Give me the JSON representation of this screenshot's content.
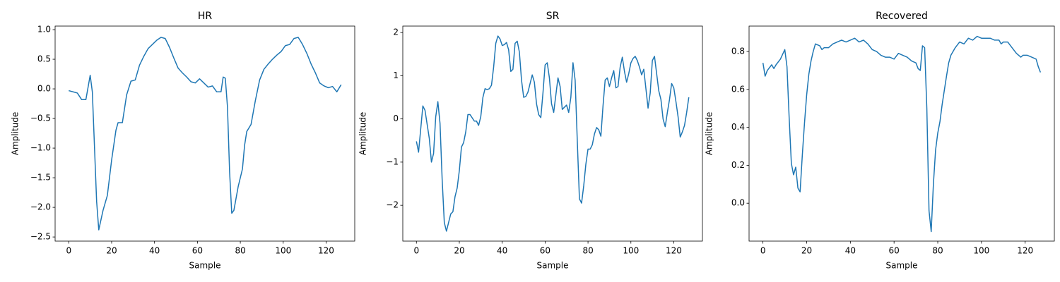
{
  "chart_data": [
    {
      "type": "line",
      "title": "HR",
      "x_label": "Sample",
      "y_label": "Amplitude",
      "color": "#1f77b4",
      "x": [
        0,
        2,
        4,
        6,
        8,
        10,
        11,
        13,
        14,
        16,
        18,
        20,
        22,
        23,
        25,
        27,
        29,
        31,
        33,
        35,
        37,
        39,
        41,
        43,
        45,
        47,
        49,
        51,
        53,
        55,
        57,
        59,
        61,
        63,
        65,
        67,
        69,
        71,
        72,
        73,
        74,
        75,
        76,
        77,
        79,
        81,
        82,
        83,
        85,
        87,
        89,
        91,
        93,
        95,
        97,
        99,
        101,
        103,
        105,
        107,
        109,
        111,
        113,
        115,
        117,
        119,
        121,
        123,
        125,
        127
      ],
      "values": [
        -0.03,
        -0.05,
        -0.07,
        -0.18,
        -0.18,
        0.23,
        -0.05,
        -1.9,
        -2.38,
        -2.05,
        -1.8,
        -1.2,
        -0.7,
        -0.57,
        -0.57,
        -0.1,
        0.13,
        0.15,
        0.4,
        0.55,
        0.68,
        0.75,
        0.82,
        0.87,
        0.85,
        0.7,
        0.52,
        0.35,
        0.27,
        0.2,
        0.12,
        0.1,
        0.17,
        0.1,
        0.03,
        0.05,
        -0.05,
        -0.05,
        0.2,
        0.18,
        -0.3,
        -1.4,
        -2.1,
        -2.05,
        -1.65,
        -1.35,
        -0.95,
        -0.72,
        -0.6,
        -0.2,
        0.15,
        0.33,
        0.42,
        0.5,
        0.57,
        0.63,
        0.73,
        0.75,
        0.85,
        0.87,
        0.75,
        0.6,
        0.42,
        0.27,
        0.1,
        0.05,
        0.02,
        0.04,
        -0.05,
        0.07
      ],
      "xlim": [
        -6.35,
        133.35
      ],
      "xticks": [
        0,
        20,
        40,
        60,
        80,
        100,
        120
      ],
      "ylim": [
        -2.57,
        1.06
      ],
      "yticks": [
        {
          "value": -2.5,
          "label": "−2.5"
        },
        {
          "value": -2.0,
          "label": "−2.0"
        },
        {
          "value": -1.5,
          "label": "−1.5"
        },
        {
          "value": -1.0,
          "label": "−1.0"
        },
        {
          "value": -0.5,
          "label": "−0.5"
        },
        {
          "value": 0,
          "label": "0.0"
        },
        0.5,
        {
          "value": 1,
          "label": "1.0"
        }
      ]
    },
    {
      "type": "line",
      "title": "SR",
      "x_label": "Sample",
      "y_label": "Amplitude",
      "color": "#1f77b4",
      "x": [
        0,
        1,
        3,
        4,
        6,
        7,
        8,
        9,
        10,
        11,
        12,
        13,
        14,
        16,
        17,
        18,
        19,
        20,
        21,
        22,
        23,
        24,
        25,
        27,
        28,
        29,
        30,
        31,
        32,
        33,
        34,
        35,
        36,
        37,
        38,
        39,
        40,
        41,
        42,
        43,
        44,
        45,
        46,
        47,
        48,
        49,
        50,
        51,
        52,
        54,
        55,
        56,
        57,
        58,
        59,
        60,
        61,
        62,
        63,
        64,
        66,
        67,
        68,
        70,
        71,
        72,
        73,
        74,
        75,
        76,
        77,
        78,
        79,
        80,
        81,
        82,
        83,
        84,
        85,
        86,
        87,
        88,
        89,
        90,
        91,
        92,
        93,
        94,
        95,
        96,
        97,
        98,
        99,
        100,
        101,
        102,
        103,
        104,
        105,
        106,
        107,
        108,
        109,
        110,
        111,
        112,
        113,
        114,
        115,
        116,
        117,
        118,
        119,
        120,
        121,
        122,
        123,
        124,
        125,
        126,
        127
      ],
      "values": [
        -0.52,
        -0.77,
        0.3,
        0.2,
        -0.45,
        -1.0,
        -0.8,
        0.05,
        0.4,
        -0.1,
        -1.4,
        -2.4,
        -2.6,
        -2.2,
        -2.15,
        -1.8,
        -1.6,
        -1.2,
        -0.65,
        -0.55,
        -0.3,
        0.1,
        0.1,
        -0.05,
        -0.05,
        -0.15,
        0.05,
        0.5,
        0.7,
        0.68,
        0.7,
        0.78,
        1.2,
        1.75,
        1.92,
        1.85,
        1.7,
        1.72,
        1.77,
        1.6,
        1.1,
        1.15,
        1.75,
        1.8,
        1.55,
        0.9,
        0.5,
        0.52,
        0.62,
        1.02,
        0.85,
        0.35,
        0.1,
        0.03,
        0.6,
        1.25,
        1.3,
        0.95,
        0.35,
        0.15,
        0.95,
        0.75,
        0.22,
        0.32,
        0.15,
        0.5,
        1.3,
        0.9,
        -0.5,
        -1.85,
        -1.95,
        -1.55,
        -1.05,
        -0.7,
        -0.7,
        -0.6,
        -0.35,
        -0.2,
        -0.25,
        -0.4,
        0.3,
        0.9,
        0.95,
        0.75,
        0.95,
        1.12,
        0.72,
        0.75,
        1.2,
        1.43,
        1.1,
        0.85,
        1.05,
        1.3,
        1.4,
        1.45,
        1.35,
        1.2,
        1.02,
        1.15,
        0.7,
        0.25,
        0.6,
        1.35,
        1.45,
        1.05,
        0.65,
        0.45,
        0.0,
        -0.18,
        0.15,
        0.45,
        0.82,
        0.72,
        0.4,
        0.05,
        -0.42,
        -0.3,
        -0.15,
        0.15,
        0.5
      ],
      "xlim": [
        -6.35,
        133.35
      ],
      "xticks": [
        0,
        20,
        40,
        60,
        80,
        100,
        120
      ],
      "ylim": [
        -2.83,
        2.15
      ],
      "yticks": [
        {
          "value": -2,
          "label": "−2"
        },
        {
          "value": -1,
          "label": "−1"
        },
        0,
        1,
        2
      ]
    },
    {
      "type": "line",
      "title": "Recovered",
      "x_label": "Sample",
      "y_label": "Amplitude",
      "color": "#1f77b4",
      "x": [
        0,
        1,
        2,
        4,
        5,
        6,
        8,
        10,
        11,
        12,
        13,
        14,
        15,
        16,
        17,
        18,
        19,
        20,
        21,
        22,
        23,
        24,
        26,
        27,
        28,
        30,
        32,
        34,
        36,
        38,
        40,
        42,
        44,
        46,
        48,
        50,
        52,
        54,
        56,
        58,
        60,
        62,
        64,
        66,
        68,
        70,
        71,
        72,
        73,
        74,
        75,
        76,
        77,
        78,
        79,
        80,
        81,
        82,
        84,
        85,
        86,
        88,
        90,
        92,
        94,
        96,
        98,
        100,
        102,
        104,
        106,
        108,
        109,
        110,
        112,
        114,
        116,
        118,
        119,
        121,
        123,
        125,
        126,
        127
      ],
      "values": [
        0.74,
        0.67,
        0.7,
        0.73,
        0.71,
        0.73,
        0.76,
        0.81,
        0.72,
        0.45,
        0.21,
        0.15,
        0.19,
        0.08,
        0.06,
        0.25,
        0.42,
        0.57,
        0.68,
        0.75,
        0.8,
        0.84,
        0.83,
        0.81,
        0.82,
        0.82,
        0.84,
        0.85,
        0.86,
        0.85,
        0.86,
        0.87,
        0.85,
        0.86,
        0.84,
        0.81,
        0.8,
        0.78,
        0.77,
        0.77,
        0.76,
        0.79,
        0.78,
        0.77,
        0.75,
        0.74,
        0.71,
        0.7,
        0.83,
        0.82,
        0.5,
        -0.04,
        -0.15,
        0.1,
        0.28,
        0.37,
        0.43,
        0.52,
        0.67,
        0.74,
        0.78,
        0.82,
        0.85,
        0.84,
        0.87,
        0.86,
        0.88,
        0.87,
        0.87,
        0.87,
        0.86,
        0.86,
        0.84,
        0.85,
        0.85,
        0.82,
        0.79,
        0.77,
        0.78,
        0.78,
        0.77,
        0.76,
        0.72,
        0.69
      ],
      "xlim": [
        -6.35,
        133.35
      ],
      "xticks": [
        0,
        20,
        40,
        60,
        80,
        100,
        120
      ],
      "ylim": [
        -0.2,
        0.934
      ],
      "yticks": [
        {
          "value": 0,
          "label": "0.0"
        },
        0.2,
        0.4,
        0.6,
        0.8
      ]
    }
  ]
}
